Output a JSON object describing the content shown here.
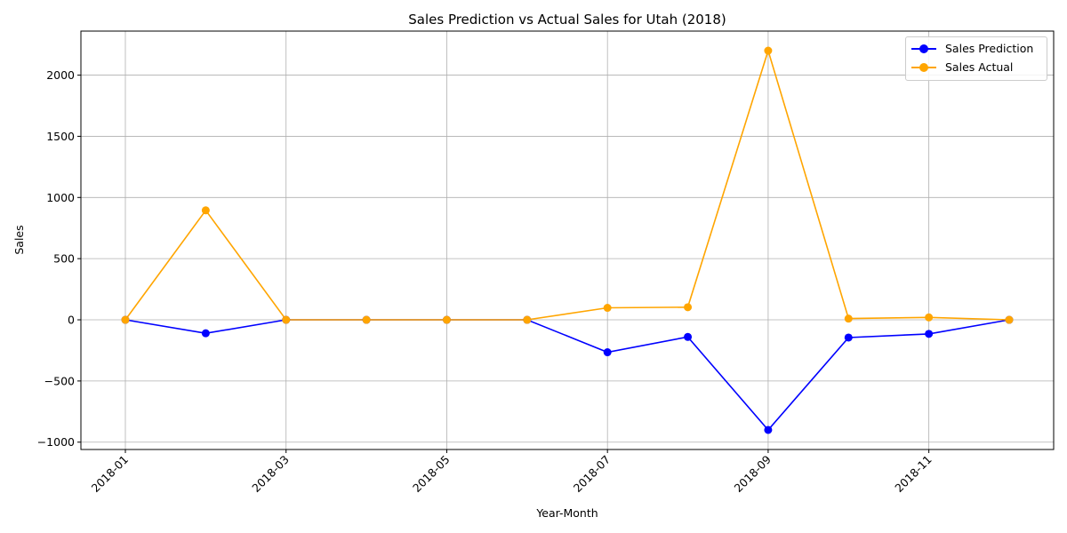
{
  "chart_data": {
    "type": "line",
    "title": "Sales Prediction vs Actual Sales for Utah (2018)",
    "xlabel": "Year-Month",
    "ylabel": "Sales",
    "x": [
      "2018-01",
      "2018-02",
      "2018-03",
      "2018-04",
      "2018-05",
      "2018-06",
      "2018-07",
      "2018-08",
      "2018-09",
      "2018-10",
      "2018-11",
      "2018-12"
    ],
    "x_tick_labels": [
      "2018-01",
      "2018-03",
      "2018-05",
      "2018-07",
      "2018-09",
      "2018-11"
    ],
    "y_ticks": [
      -1000,
      -500,
      0,
      500,
      1000,
      1500,
      2000
    ],
    "ylim": [
      -1060,
      2360
    ],
    "grid": true,
    "legend_position": "top-right",
    "series": [
      {
        "name": "Sales Prediction",
        "color": "#0000ff",
        "marker": "circle",
        "values": [
          0,
          -110,
          0,
          0,
          0,
          0,
          -265,
          -140,
          -900,
          -145,
          -115,
          0
        ]
      },
      {
        "name": "Sales Actual",
        "color": "#ffa500",
        "marker": "circle",
        "values": [
          0,
          895,
          0,
          0,
          0,
          0,
          98,
          103,
          2200,
          10,
          20,
          0
        ]
      }
    ]
  }
}
